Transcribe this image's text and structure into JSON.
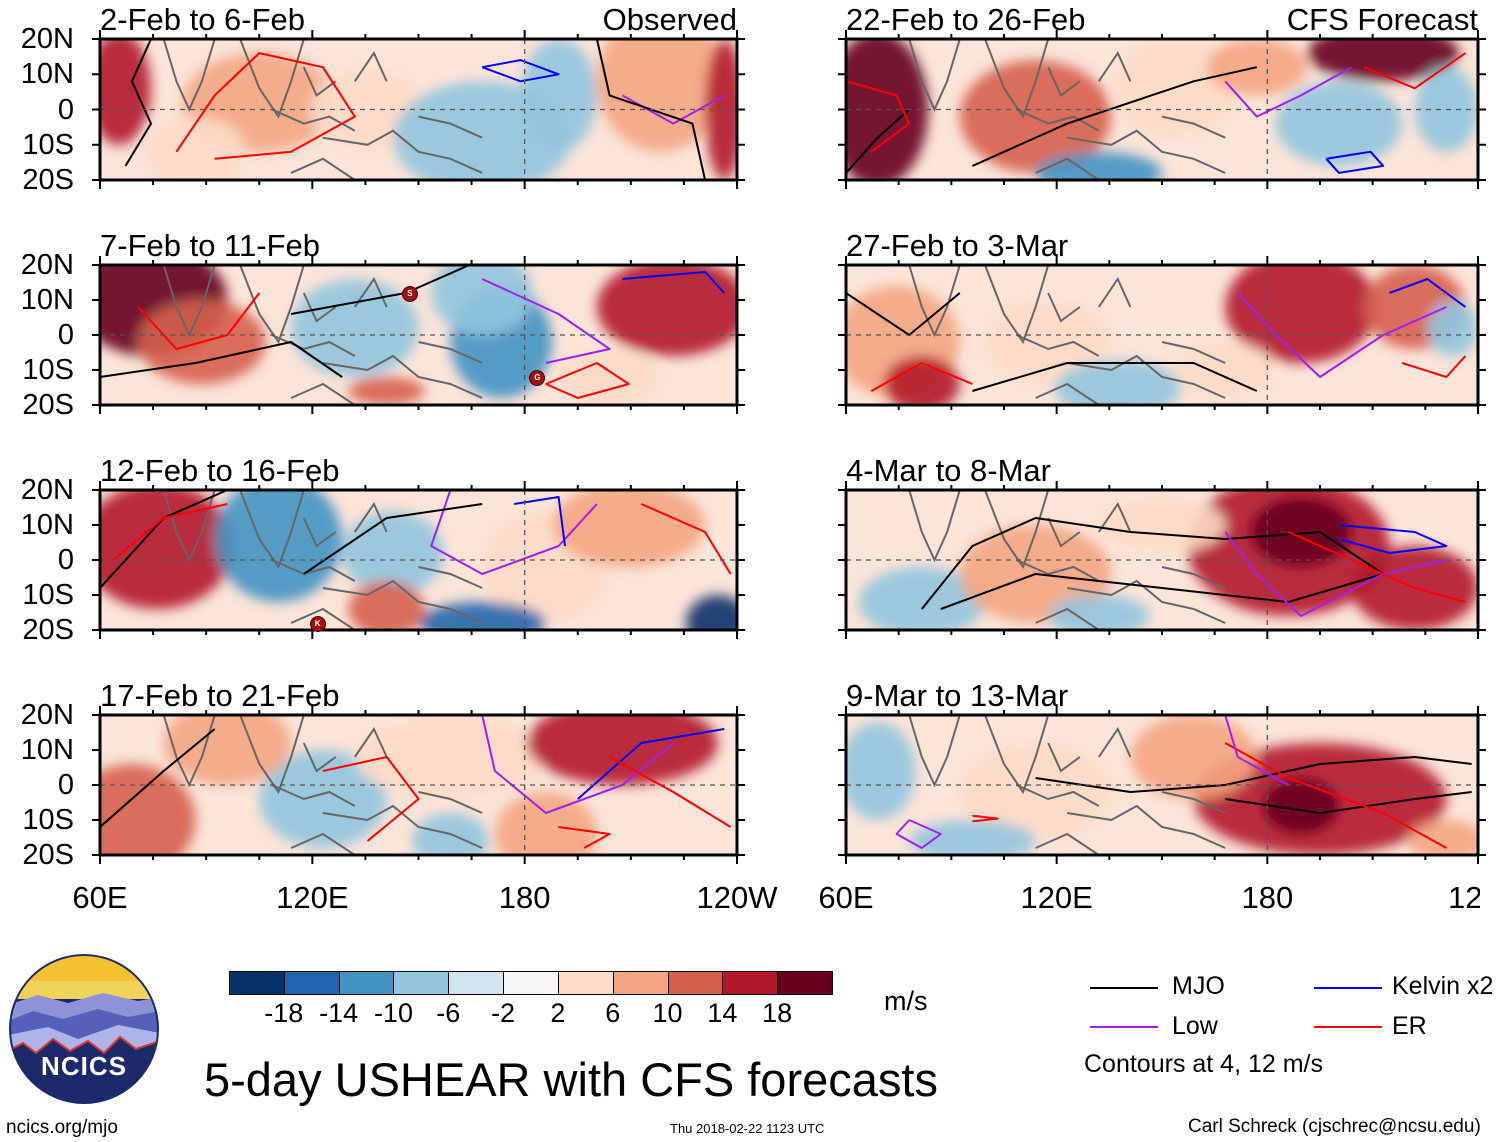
{
  "panels": [
    {
      "title": "2-Feb to 6-Feb",
      "label": "Observed"
    },
    {
      "title": "7-Feb to 11-Feb",
      "label": ""
    },
    {
      "title": "12-Feb to 16-Feb",
      "label": ""
    },
    {
      "title": "17-Feb to 21-Feb",
      "label": ""
    },
    {
      "title": "22-Feb to 26-Feb",
      "label": "CFS Forecast"
    },
    {
      "title": "27-Feb to 3-Mar",
      "label": ""
    },
    {
      "title": "4-Mar to 8-Mar",
      "label": ""
    },
    {
      "title": "9-Mar to 13-Mar",
      "label": ""
    }
  ],
  "lat_labels": [
    "20N",
    "10N",
    "0",
    "10S",
    "20S"
  ],
  "lon_labels": [
    "60E",
    "120E",
    "180",
    "120W"
  ],
  "colorbar": {
    "colors": [
      "#08306b",
      "#2166ac",
      "#4393c3",
      "#92c5de",
      "#d1e5f0",
      "#f7f7f7",
      "#fddbc7",
      "#f4a582",
      "#d6604d",
      "#b2182b",
      "#67001f"
    ],
    "ticks": [
      "-18",
      "-14",
      "-10",
      "-6",
      "-2",
      "2",
      "6",
      "10",
      "14",
      "18"
    ],
    "units": "m/s"
  },
  "legend": {
    "items": [
      {
        "name": "MJO",
        "color": "#000000"
      },
      {
        "name": "Kelvin x2",
        "color": "#0000ff"
      },
      {
        "name": "Low",
        "color": "#a020f0"
      },
      {
        "name": "ER",
        "color": "#ff0000"
      }
    ],
    "note": "Contours at 4, 12 m/s"
  },
  "storms": [
    {
      "letter": "S"
    },
    {
      "letter": "G"
    },
    {
      "letter": "K"
    }
  ],
  "main_title": "5-day USHEAR with CFS forecasts",
  "logo_text": "NCICS",
  "footer": {
    "left": "ncics.org/mjo",
    "center": "Thu 2018-02-22 1123 UTC",
    "right": "Carl Schreck (cjschrec@ncsu.edu)"
  }
}
